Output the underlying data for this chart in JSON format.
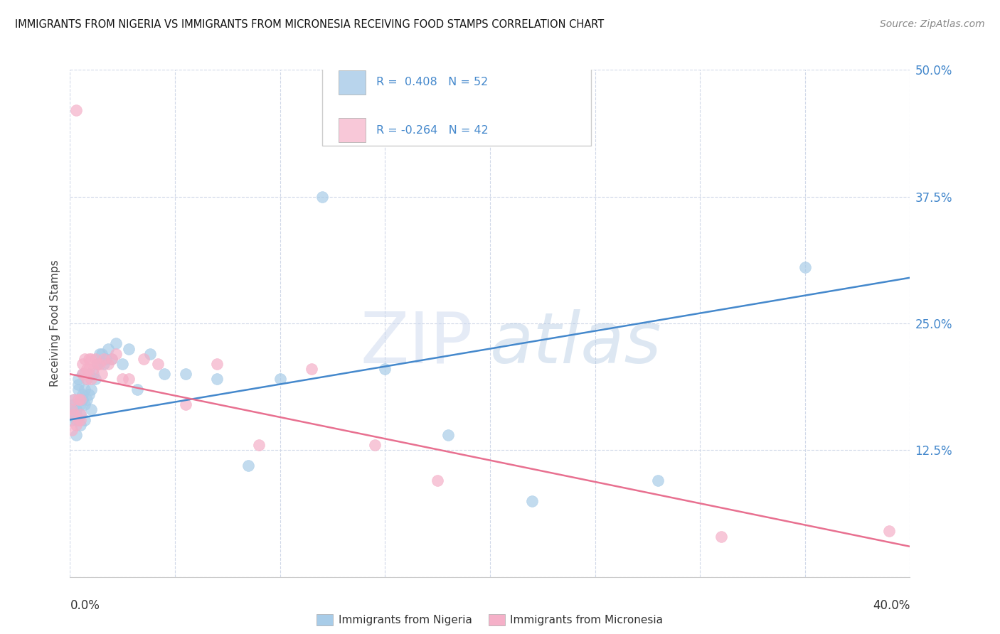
{
  "title": "IMMIGRANTS FROM NIGERIA VS IMMIGRANTS FROM MICRONESIA RECEIVING FOOD STAMPS CORRELATION CHART",
  "source": "Source: ZipAtlas.com",
  "ylabel": "Receiving Food Stamps",
  "y_ticks": [
    0.0,
    0.125,
    0.25,
    0.375,
    0.5
  ],
  "y_tick_labels": [
    "",
    "12.5%",
    "25.0%",
    "37.5%",
    "50.0%"
  ],
  "x_ticks": [
    0.0,
    0.05,
    0.1,
    0.15,
    0.2,
    0.25,
    0.3,
    0.35,
    0.4
  ],
  "series_nigeria": {
    "label": "Immigrants from Nigeria",
    "dot_color": "#a8cce8",
    "line_color": "#4488cc",
    "legend_color": "#b8d4ec",
    "R": 0.408,
    "N": 52
  },
  "series_micronesia": {
    "label": "Immigrants from Micronesia",
    "dot_color": "#f5b0c8",
    "line_color": "#e87090",
    "legend_color": "#f8c8d8",
    "R": -0.264,
    "N": 42
  },
  "nigeria_x": [
    0.001,
    0.001,
    0.002,
    0.002,
    0.002,
    0.003,
    0.003,
    0.003,
    0.003,
    0.004,
    0.004,
    0.004,
    0.005,
    0.005,
    0.005,
    0.006,
    0.006,
    0.006,
    0.007,
    0.007,
    0.007,
    0.008,
    0.008,
    0.009,
    0.009,
    0.01,
    0.01,
    0.011,
    0.012,
    0.013,
    0.014,
    0.015,
    0.016,
    0.017,
    0.018,
    0.02,
    0.022,
    0.025,
    0.028,
    0.032,
    0.038,
    0.045,
    0.055,
    0.07,
    0.085,
    0.1,
    0.12,
    0.15,
    0.18,
    0.22,
    0.28,
    0.35
  ],
  "nigeria_y": [
    0.155,
    0.16,
    0.165,
    0.17,
    0.175,
    0.14,
    0.155,
    0.16,
    0.165,
    0.185,
    0.19,
    0.195,
    0.15,
    0.16,
    0.17,
    0.175,
    0.18,
    0.2,
    0.155,
    0.17,
    0.185,
    0.175,
    0.195,
    0.18,
    0.2,
    0.165,
    0.185,
    0.2,
    0.195,
    0.21,
    0.22,
    0.22,
    0.21,
    0.215,
    0.225,
    0.215,
    0.23,
    0.21,
    0.225,
    0.185,
    0.22,
    0.2,
    0.2,
    0.195,
    0.11,
    0.195,
    0.375,
    0.205,
    0.14,
    0.075,
    0.095,
    0.305
  ],
  "micronesia_x": [
    0.001,
    0.001,
    0.002,
    0.002,
    0.003,
    0.003,
    0.004,
    0.004,
    0.005,
    0.005,
    0.005,
    0.006,
    0.006,
    0.007,
    0.007,
    0.008,
    0.008,
    0.009,
    0.009,
    0.01,
    0.01,
    0.011,
    0.012,
    0.013,
    0.014,
    0.015,
    0.016,
    0.018,
    0.02,
    0.022,
    0.025,
    0.028,
    0.035,
    0.042,
    0.055,
    0.07,
    0.09,
    0.115,
    0.145,
    0.175,
    0.31,
    0.39
  ],
  "micronesia_y": [
    0.145,
    0.165,
    0.16,
    0.175,
    0.15,
    0.46,
    0.155,
    0.175,
    0.155,
    0.16,
    0.175,
    0.2,
    0.21,
    0.2,
    0.215,
    0.195,
    0.205,
    0.215,
    0.205,
    0.195,
    0.215,
    0.205,
    0.215,
    0.21,
    0.21,
    0.2,
    0.215,
    0.21,
    0.215,
    0.22,
    0.195,
    0.195,
    0.215,
    0.21,
    0.17,
    0.21,
    0.13,
    0.205,
    0.13,
    0.095,
    0.04,
    0.045
  ],
  "nigeria_line": [
    0.155,
    0.295
  ],
  "micronesia_line": [
    0.2,
    0.03
  ],
  "watermark_zip": "ZIP",
  "watermark_atlas": "atlas",
  "background_color": "#ffffff",
  "grid_color": "#d0d8e8",
  "axis_label_color": "#4488cc",
  "legend_text_color": "#4488cc",
  "title_fontsize": 11,
  "source_text": "Source: ZipAtlas.com"
}
